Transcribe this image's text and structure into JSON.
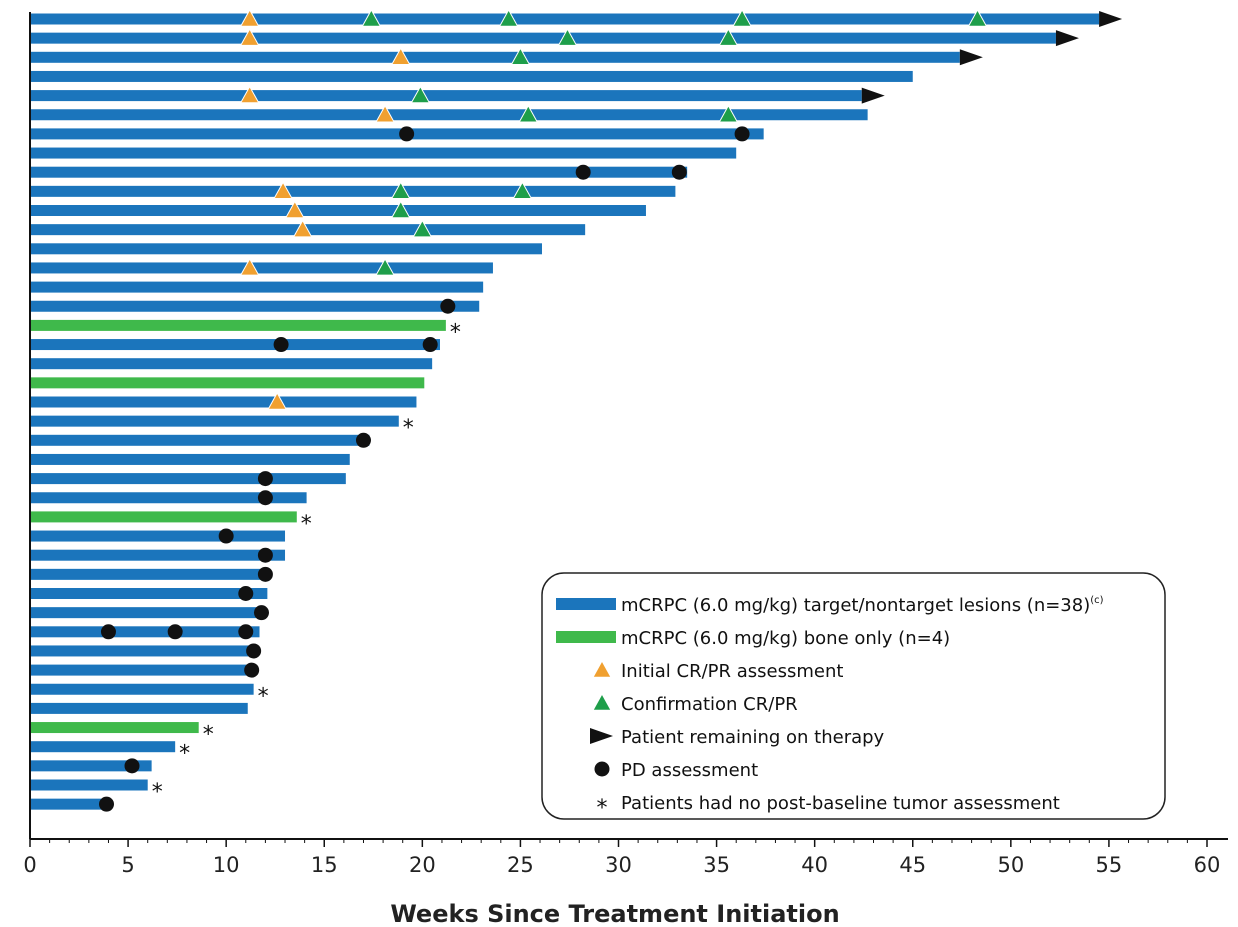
{
  "chart_data": {
    "type": "bar",
    "orientation": "horizontal",
    "xlabel": "Weeks Since Treatment Initiation",
    "xlim": [
      0,
      60
    ],
    "xticks": [
      0,
      5,
      10,
      15,
      20,
      25,
      30,
      35,
      40,
      45,
      50,
      55,
      60
    ],
    "grid": false,
    "legend_position": "bottom-right",
    "colors": {
      "target": "#1b75bc",
      "bone": "#3fb94b",
      "initial": "#f0a030",
      "confirm": "#1e9e4a",
      "ongoing": "#111111",
      "pd": "#111111"
    },
    "legend": [
      {
        "key": "target",
        "label": "mCRPC (6.0 mg/kg) target/nontarget lesions (n=38)",
        "sup": "(c)"
      },
      {
        "key": "bone",
        "label": "mCRPC (6.0 mg/kg) bone only (n=4)"
      },
      {
        "key": "initial",
        "label": "Initial CR/PR assessment"
      },
      {
        "key": "confirm",
        "label": "Confirmation CR/PR"
      },
      {
        "key": "ongoing",
        "label": "Patient remaining on therapy"
      },
      {
        "key": "pd",
        "label": "PD assessment"
      },
      {
        "key": "noassess",
        "symbol": "*",
        "label": "Patients had no post-baseline tumor assessment"
      }
    ],
    "patients": [
      {
        "weeks": 54.5,
        "group": "target",
        "initial": [
          11.2
        ],
        "confirm": [
          17.4,
          24.4,
          36.3,
          48.3
        ],
        "ongoing": true
      },
      {
        "weeks": 52.3,
        "group": "target",
        "initial": [
          11.2
        ],
        "confirm": [
          27.4,
          35.6
        ],
        "ongoing": true
      },
      {
        "weeks": 47.4,
        "group": "target",
        "initial": [
          18.9
        ],
        "confirm": [
          25.0
        ],
        "ongoing": true
      },
      {
        "weeks": 45.0,
        "group": "target"
      },
      {
        "weeks": 42.4,
        "group": "target",
        "initial": [
          11.2
        ],
        "confirm": [
          19.9
        ],
        "ongoing": true
      },
      {
        "weeks": 42.7,
        "group": "target",
        "initial": [
          18.1
        ],
        "confirm": [
          25.4,
          35.6
        ]
      },
      {
        "weeks": 37.4,
        "group": "target",
        "pd": [
          19.2,
          36.3
        ]
      },
      {
        "weeks": 36.0,
        "group": "target"
      },
      {
        "weeks": 33.5,
        "group": "target",
        "pd": [
          28.2,
          33.1
        ]
      },
      {
        "weeks": 32.9,
        "group": "target",
        "initial": [
          12.9
        ],
        "confirm": [
          18.9,
          25.1
        ]
      },
      {
        "weeks": 31.4,
        "group": "target",
        "initial": [
          13.5
        ],
        "confirm": [
          18.9
        ]
      },
      {
        "weeks": 28.3,
        "group": "target",
        "initial": [
          13.9
        ],
        "confirm": [
          20.0
        ]
      },
      {
        "weeks": 26.1,
        "group": "target"
      },
      {
        "weeks": 23.6,
        "group": "target",
        "initial": [
          11.2
        ],
        "confirm": [
          18.1
        ]
      },
      {
        "weeks": 23.1,
        "group": "target"
      },
      {
        "weeks": 22.9,
        "group": "target",
        "pd": [
          21.3
        ]
      },
      {
        "weeks": 21.2,
        "group": "bone",
        "noassess": true
      },
      {
        "weeks": 20.9,
        "group": "target",
        "pd": [
          12.8,
          20.4
        ]
      },
      {
        "weeks": 20.5,
        "group": "target"
      },
      {
        "weeks": 20.1,
        "group": "bone"
      },
      {
        "weeks": 19.7,
        "group": "target",
        "initial": [
          12.6
        ]
      },
      {
        "weeks": 18.8,
        "group": "target",
        "noassess": true
      },
      {
        "weeks": 17.3,
        "group": "target",
        "pd": [
          17.0
        ]
      },
      {
        "weeks": 16.3,
        "group": "target"
      },
      {
        "weeks": 16.1,
        "group": "target",
        "pd": [
          12.0
        ]
      },
      {
        "weeks": 14.1,
        "group": "target",
        "pd": [
          12.0
        ]
      },
      {
        "weeks": 13.6,
        "group": "bone",
        "noassess": true
      },
      {
        "weeks": 13.0,
        "group": "target",
        "pd": [
          10.0
        ]
      },
      {
        "weeks": 13.0,
        "group": "target",
        "pd": [
          12.0
        ]
      },
      {
        "weeks": 12.2,
        "group": "target",
        "pd": [
          12.0
        ]
      },
      {
        "weeks": 12.1,
        "group": "target",
        "pd": [
          11.0
        ]
      },
      {
        "weeks": 11.8,
        "group": "target",
        "pd": [
          11.8
        ]
      },
      {
        "weeks": 11.7,
        "group": "target",
        "pd": [
          4.0,
          7.4,
          11.0
        ]
      },
      {
        "weeks": 11.4,
        "group": "target",
        "pd": [
          11.4
        ]
      },
      {
        "weeks": 11.3,
        "group": "target",
        "pd": [
          11.3
        ]
      },
      {
        "weeks": 11.4,
        "group": "target",
        "noassess": true
      },
      {
        "weeks": 11.1,
        "group": "target"
      },
      {
        "weeks": 8.6,
        "group": "bone",
        "noassess": true
      },
      {
        "weeks": 7.4,
        "group": "target",
        "noassess": true
      },
      {
        "weeks": 6.2,
        "group": "target",
        "pd": [
          5.2
        ]
      },
      {
        "weeks": 6.0,
        "group": "target",
        "noassess": true
      },
      {
        "weeks": 4.0,
        "group": "target",
        "pd": [
          3.9
        ]
      }
    ]
  }
}
